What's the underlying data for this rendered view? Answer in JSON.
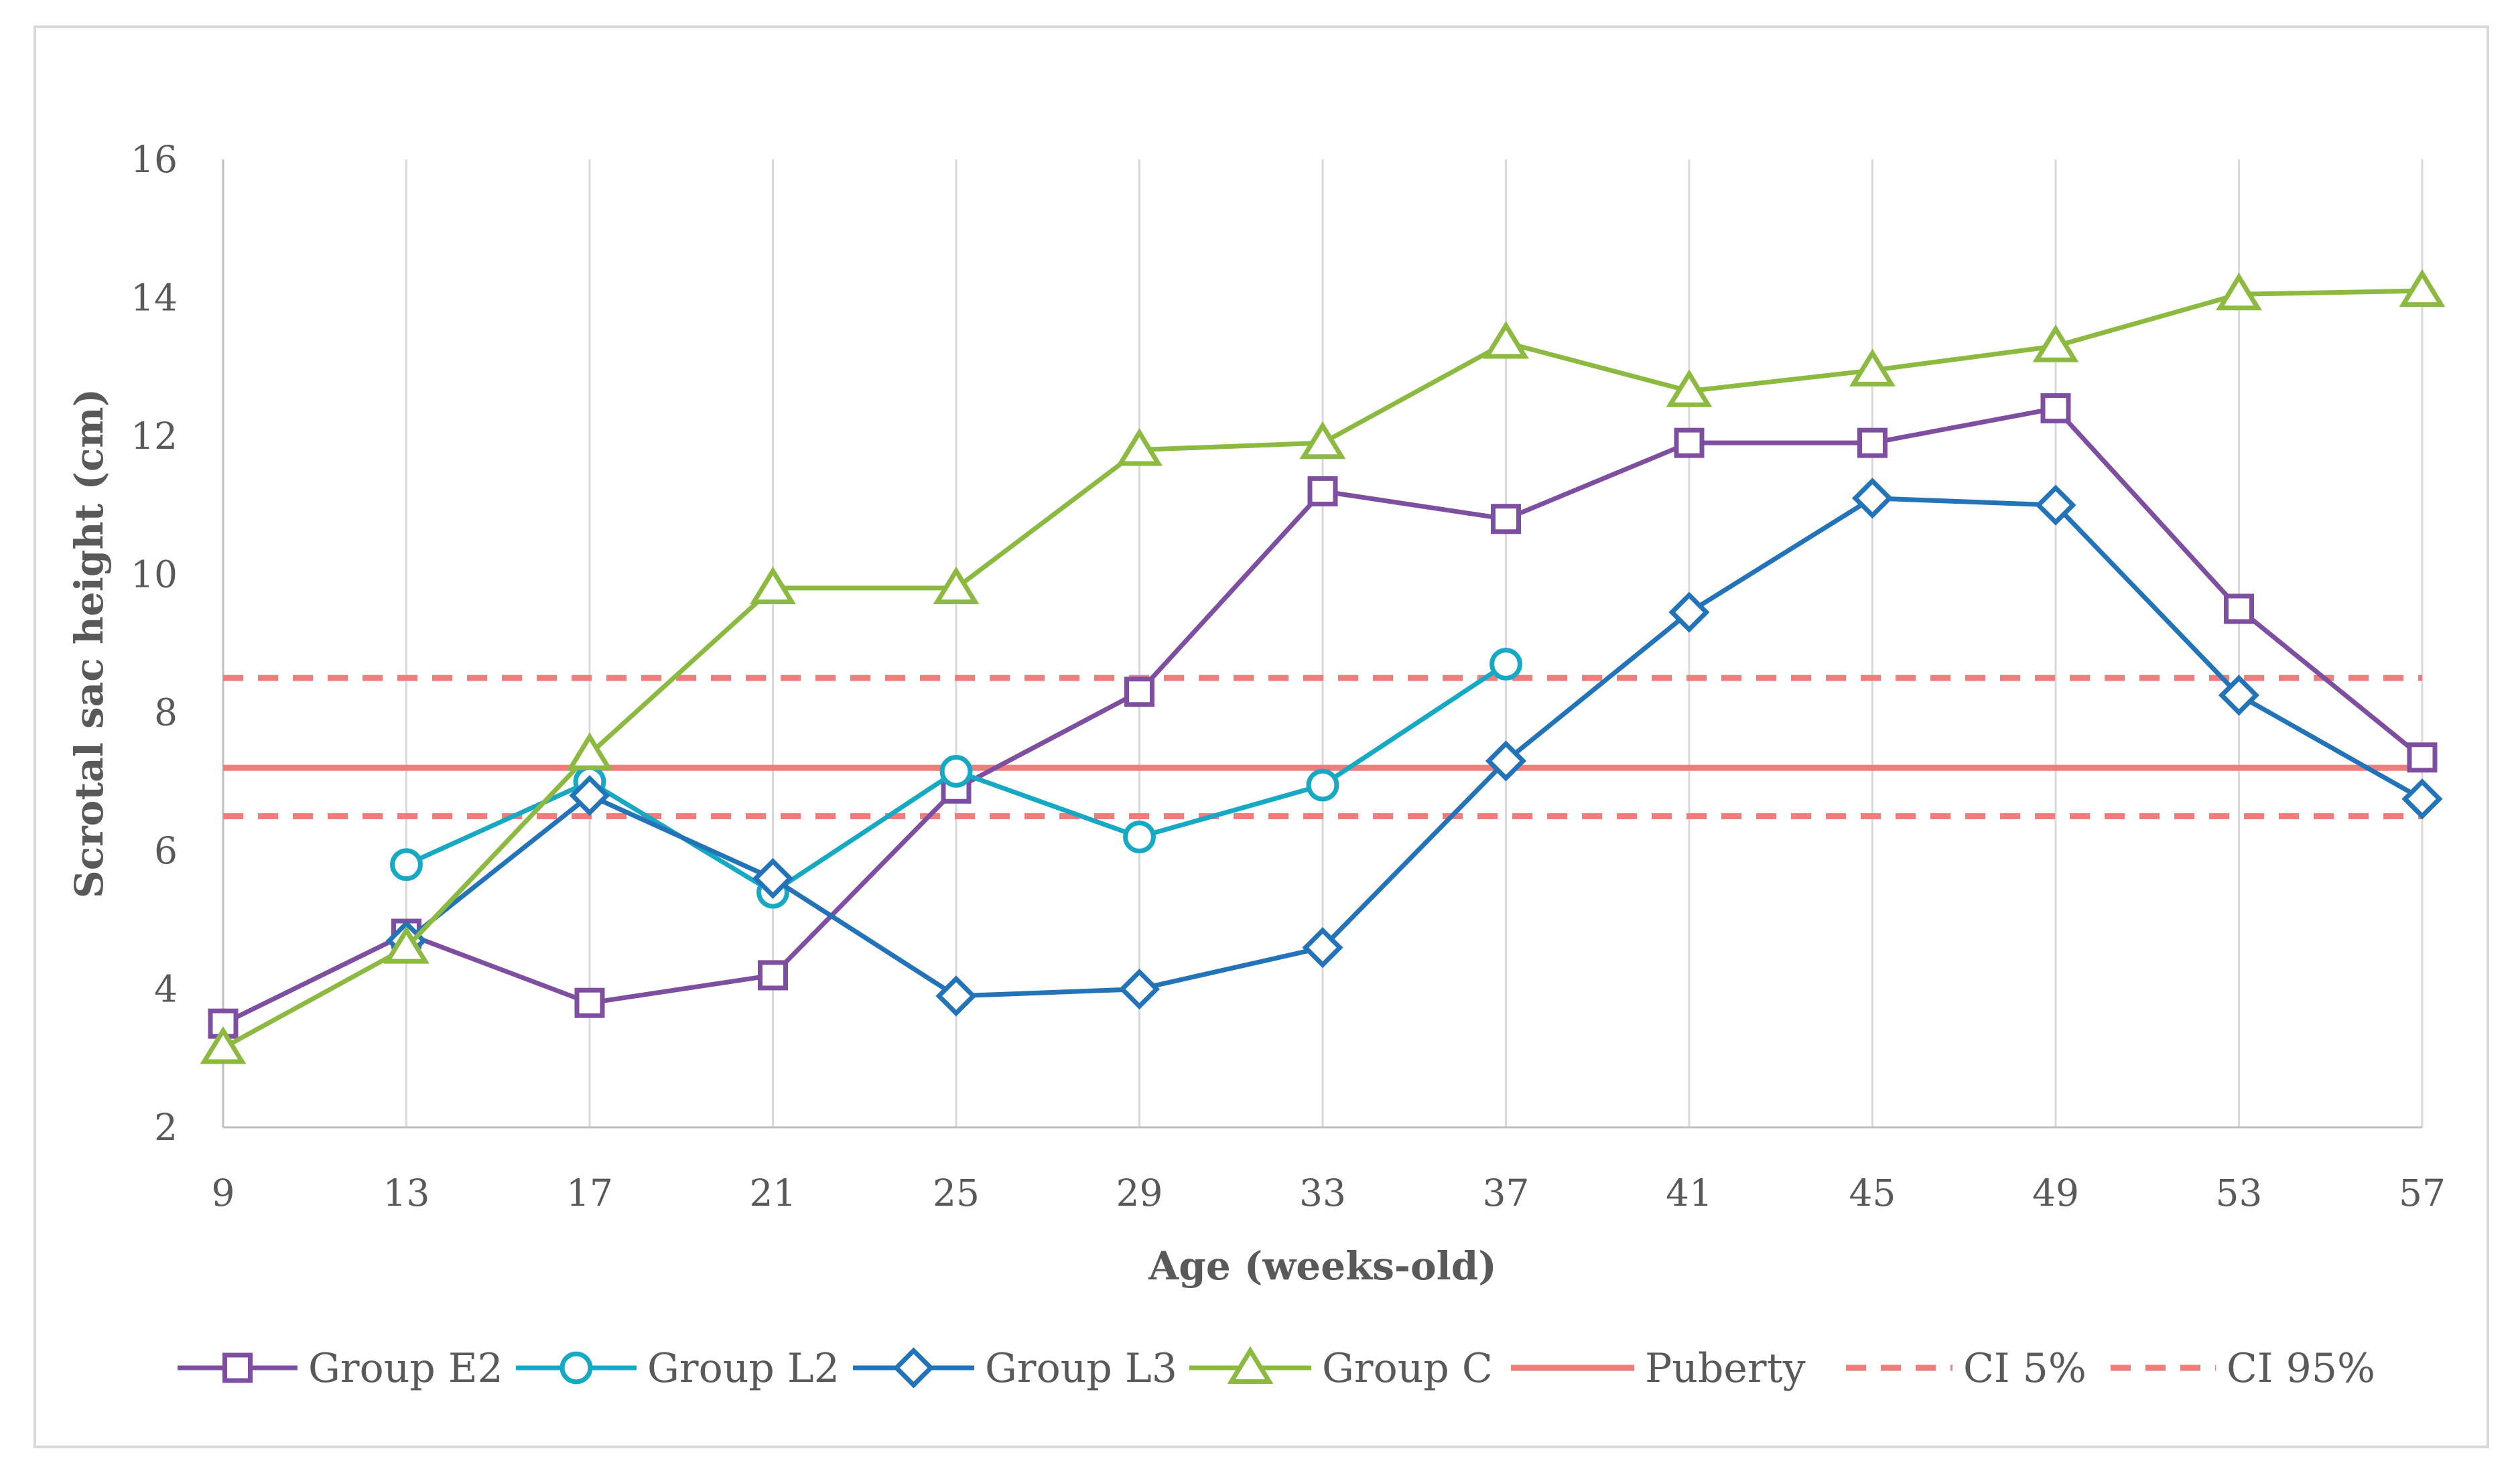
{
  "chart_data": {
    "type": "line",
    "title": "",
    "xlabel": "Age (weeks-old)",
    "ylabel": "Scrotal sac height (cm)",
    "x": [
      9,
      13,
      17,
      21,
      25,
      29,
      33,
      37,
      41,
      45,
      49,
      53,
      57
    ],
    "x_tick_labels": [
      "9",
      "13",
      "17",
      "21",
      "25",
      "29",
      "33",
      "37",
      "41",
      "45",
      "49",
      "53",
      "57"
    ],
    "y_tick_labels": [
      "2",
      "4",
      "6",
      "8",
      "10",
      "12",
      "14",
      "16"
    ],
    "ylim": [
      2,
      16
    ],
    "grid": "vertical",
    "legend_position": "bottom",
    "series": [
      {
        "name": "Group E2",
        "color": "#7E4FA0",
        "marker": "square",
        "dash": "solid",
        "values": [
          3.5,
          4.8,
          3.8,
          4.2,
          6.9,
          8.3,
          11.2,
          10.8,
          11.9,
          11.9,
          12.4,
          9.5,
          7.35
        ]
      },
      {
        "name": "Group L2",
        "color": "#17A9C3",
        "marker": "circle",
        "dash": "solid",
        "values": [
          null,
          5.8,
          7.0,
          5.4,
          7.15,
          6.2,
          6.95,
          8.7,
          null,
          null,
          null,
          null,
          null
        ]
      },
      {
        "name": "Group L3",
        "color": "#2273B8",
        "marker": "diamond",
        "dash": "solid",
        "values": [
          null,
          4.7,
          6.8,
          5.6,
          3.9,
          4.0,
          4.6,
          7.3,
          9.45,
          11.1,
          11.0,
          8.25,
          6.75
        ]
      },
      {
        "name": "Group C",
        "color": "#8CB93F",
        "marker": "triangle",
        "dash": "solid",
        "values": [
          3.15,
          4.6,
          7.4,
          9.8,
          9.8,
          11.8,
          11.9,
          13.35,
          12.65,
          12.95,
          13.3,
          14.05,
          14.1
        ]
      },
      {
        "name": "Puberty",
        "color": "#F07C7C",
        "marker": "none",
        "dash": "solid",
        "values": [
          7.2,
          7.2,
          7.2,
          7.2,
          7.2,
          7.2,
          7.2,
          7.2,
          7.2,
          7.2,
          7.2,
          7.2,
          7.2
        ]
      },
      {
        "name": "CI 5%",
        "color": "#F07C7C",
        "marker": "none",
        "dash": "dashed",
        "values": [
          6.5,
          6.5,
          6.5,
          6.5,
          6.5,
          6.5,
          6.5,
          6.5,
          6.5,
          6.5,
          6.5,
          6.5,
          6.5
        ]
      },
      {
        "name": "CI 95%",
        "color": "#F07C7C",
        "marker": "none",
        "dash": "dashed",
        "values": [
          8.5,
          8.5,
          8.5,
          8.5,
          8.5,
          8.5,
          8.5,
          8.5,
          8.5,
          8.5,
          8.5,
          8.5,
          8.5
        ]
      }
    ]
  }
}
